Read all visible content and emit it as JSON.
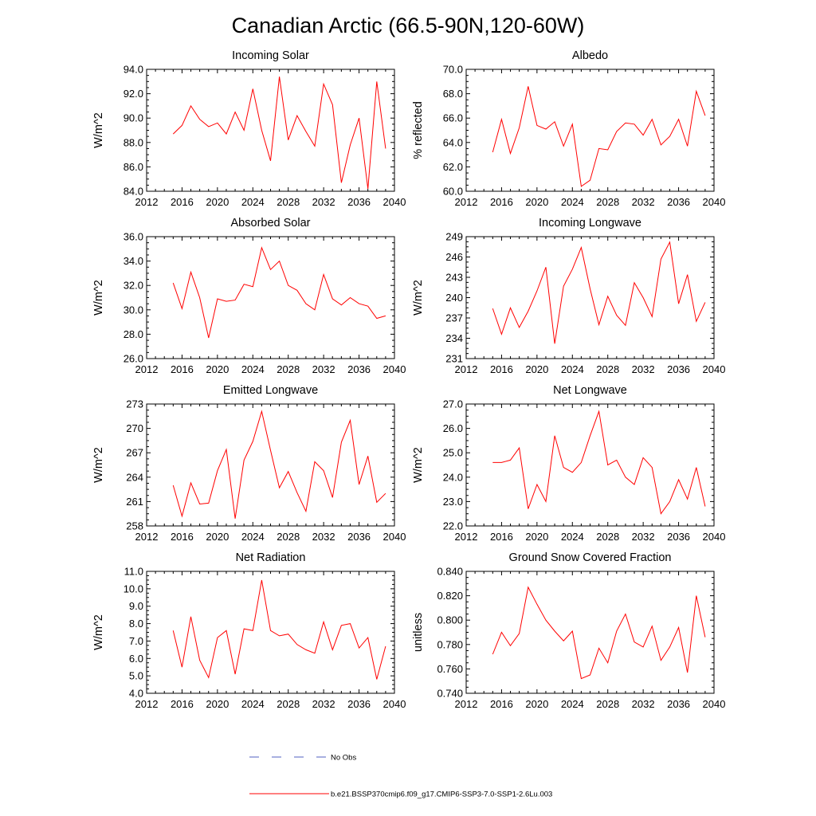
{
  "figure_title": "Canadian Arctic (66.5-90N,120-60W)",
  "legend": {
    "entries": [
      {
        "label": "No Obs",
        "color": "#5060c0",
        "style": "dashed"
      },
      {
        "label": "b.e21.BSSP370cmip6.f09_g17.CMIP6-SSP3-7.0-SSP1-2.6Lu.003",
        "color": "#ff0000",
        "style": "solid"
      }
    ]
  },
  "chart_data": [
    {
      "type": "line",
      "title": "Incoming Solar",
      "xlabel": "",
      "ylabel": "W/m^2",
      "xlim": [
        2012,
        2040
      ],
      "ylim": [
        84,
        94
      ],
      "xticks": [
        2012,
        2016,
        2020,
        2024,
        2028,
        2032,
        2036,
        2040
      ],
      "xtick_labels": [
        "2012",
        "2016",
        "2020",
        "2024",
        "2028",
        "2032",
        "2036",
        "2040"
      ],
      "yticks": [
        84,
        86,
        88,
        90,
        92,
        94
      ],
      "ytick_labels": [
        "84.0",
        "86.0",
        "88.0",
        "90.0",
        "92.0",
        "94.0"
      ],
      "x": [
        2015,
        2016,
        2017,
        2018,
        2019,
        2020,
        2021,
        2022,
        2023,
        2024,
        2025,
        2026,
        2027,
        2028,
        2029,
        2030,
        2031,
        2032,
        2033,
        2034,
        2035,
        2036,
        2037,
        2038,
        2039
      ],
      "series": [
        {
          "name": "b.e21.BSSP370cmip6.f09_g17.CMIP6-SSP3-7.0-SSP1-2.6Lu.003",
          "color": "#ff0000",
          "values": [
            88.7,
            89.4,
            91.0,
            89.9,
            89.3,
            89.6,
            88.7,
            90.5,
            89.0,
            92.4,
            89.0,
            86.5,
            93.4,
            88.2,
            90.2,
            88.9,
            87.7,
            92.8,
            91.1,
            84.7,
            87.8,
            90.0,
            84.2,
            93.0,
            87.5
          ]
        }
      ]
    },
    {
      "type": "line",
      "title": "Albedo",
      "xlabel": "",
      "ylabel": "% reflected",
      "xlim": [
        2012,
        2040
      ],
      "ylim": [
        60,
        70
      ],
      "xticks": [
        2012,
        2016,
        2020,
        2024,
        2028,
        2032,
        2036,
        2040
      ],
      "xtick_labels": [
        "2012",
        "2016",
        "2020",
        "2024",
        "2028",
        "2032",
        "2036",
        "2040"
      ],
      "yticks": [
        60,
        62,
        64,
        66,
        68,
        70
      ],
      "ytick_labels": [
        "60.0",
        "62.0",
        "64.0",
        "66.0",
        "68.0",
        "70.0"
      ],
      "x": [
        2015,
        2016,
        2017,
        2018,
        2019,
        2020,
        2021,
        2022,
        2023,
        2024,
        2025,
        2026,
        2027,
        2028,
        2029,
        2030,
        2031,
        2032,
        2033,
        2034,
        2035,
        2036,
        2037,
        2038,
        2039
      ],
      "series": [
        {
          "name": "b.e21.BSSP370cmip6.f09_g17.CMIP6-SSP3-7.0-SSP1-2.6Lu.003",
          "color": "#ff0000",
          "values": [
            63.2,
            65.9,
            63.1,
            65.2,
            68.6,
            65.4,
            65.1,
            65.7,
            63.7,
            65.5,
            60.4,
            60.9,
            63.5,
            63.4,
            64.9,
            65.6,
            65.5,
            64.6,
            65.9,
            63.8,
            64.5,
            65.9,
            63.7,
            68.2,
            66.2
          ]
        }
      ]
    },
    {
      "type": "line",
      "title": "Absorbed Solar",
      "xlabel": "",
      "ylabel": "W/m^2",
      "xlim": [
        2012,
        2040
      ],
      "ylim": [
        26,
        36
      ],
      "xticks": [
        2012,
        2016,
        2020,
        2024,
        2028,
        2032,
        2036,
        2040
      ],
      "xtick_labels": [
        "2012",
        "2016",
        "2020",
        "2024",
        "2028",
        "2032",
        "2036",
        "2040"
      ],
      "yticks": [
        26,
        28,
        30,
        32,
        34,
        36
      ],
      "ytick_labels": [
        "26.0",
        "28.0",
        "30.0",
        "32.0",
        "34.0",
        "36.0"
      ],
      "x": [
        2015,
        2016,
        2017,
        2018,
        2019,
        2020,
        2021,
        2022,
        2023,
        2024,
        2025,
        2026,
        2027,
        2028,
        2029,
        2030,
        2031,
        2032,
        2033,
        2034,
        2035,
        2036,
        2037,
        2038,
        2039
      ],
      "series": [
        {
          "name": "b.e21.BSSP370cmip6.f09_g17.CMIP6-SSP3-7.0-SSP1-2.6Lu.003",
          "color": "#ff0000",
          "values": [
            32.2,
            30.1,
            33.1,
            31.0,
            27.7,
            30.9,
            30.7,
            30.8,
            32.1,
            31.9,
            35.1,
            33.3,
            34.0,
            32.0,
            31.6,
            30.5,
            30.0,
            32.9,
            30.9,
            30.4,
            31.0,
            30.5,
            30.3,
            29.3,
            29.5
          ]
        }
      ]
    },
    {
      "type": "line",
      "title": "Incoming Longwave",
      "xlabel": "",
      "ylabel": "W/m^2",
      "xlim": [
        2012,
        2040
      ],
      "ylim": [
        231,
        249
      ],
      "xticks": [
        2012,
        2016,
        2020,
        2024,
        2028,
        2032,
        2036,
        2040
      ],
      "xtick_labels": [
        "2012",
        "2016",
        "2020",
        "2024",
        "2028",
        "2032",
        "2036",
        "2040"
      ],
      "yticks": [
        231,
        234,
        237,
        240,
        243,
        246,
        249
      ],
      "ytick_labels": [
        "231",
        "234",
        "237",
        "240",
        "243",
        "246",
        "249"
      ],
      "x": [
        2015,
        2016,
        2017,
        2018,
        2019,
        2020,
        2021,
        2022,
        2023,
        2024,
        2025,
        2026,
        2027,
        2028,
        2029,
        2030,
        2031,
        2032,
        2033,
        2034,
        2035,
        2036,
        2037,
        2038,
        2039
      ],
      "series": [
        {
          "name": "b.e21.BSSP370cmip6.f09_g17.CMIP6-SSP3-7.0-SSP1-2.6Lu.003",
          "color": "#ff0000",
          "values": [
            238.4,
            234.6,
            238.5,
            235.6,
            238.0,
            241.0,
            244.5,
            233.2,
            241.7,
            244.2,
            247.4,
            241.3,
            236.0,
            240.2,
            237.4,
            235.9,
            242.2,
            240.0,
            237.2,
            245.7,
            248.2,
            239.1,
            243.4,
            236.5,
            239.3
          ]
        }
      ]
    },
    {
      "type": "line",
      "title": "Emitted Longwave",
      "xlabel": "",
      "ylabel": "W/m^2",
      "xlim": [
        2012,
        2040
      ],
      "ylim": [
        258,
        273
      ],
      "xticks": [
        2012,
        2016,
        2020,
        2024,
        2028,
        2032,
        2036,
        2040
      ],
      "xtick_labels": [
        "2012",
        "2016",
        "2020",
        "2024",
        "2028",
        "2032",
        "2036",
        "2040"
      ],
      "yticks": [
        258,
        261,
        264,
        267,
        270,
        273
      ],
      "ytick_labels": [
        "258",
        "261",
        "264",
        "267",
        "270",
        "273"
      ],
      "x": [
        2015,
        2016,
        2017,
        2018,
        2019,
        2020,
        2021,
        2022,
        2023,
        2024,
        2025,
        2026,
        2027,
        2028,
        2029,
        2030,
        2031,
        2032,
        2033,
        2034,
        2035,
        2036,
        2037,
        2038,
        2039
      ],
      "series": [
        {
          "name": "b.e21.BSSP370cmip6.f09_g17.CMIP6-SSP3-7.0-SSP1-2.6Lu.003",
          "color": "#ff0000",
          "values": [
            263.0,
            259.2,
            263.3,
            260.7,
            260.8,
            264.8,
            267.4,
            258.9,
            266.1,
            268.4,
            272.1,
            267.3,
            262.7,
            264.7,
            262.1,
            259.8,
            265.9,
            264.8,
            261.5,
            268.3,
            271.0,
            263.1,
            266.6,
            260.9,
            262.0
          ]
        }
      ]
    },
    {
      "type": "line",
      "title": "Net Longwave",
      "xlabel": "",
      "ylabel": "W/m^2",
      "xlim": [
        2012,
        2040
      ],
      "ylim": [
        22,
        27
      ],
      "xticks": [
        2012,
        2016,
        2020,
        2024,
        2028,
        2032,
        2036,
        2040
      ],
      "xtick_labels": [
        "2012",
        "2016",
        "2020",
        "2024",
        "2028",
        "2032",
        "2036",
        "2040"
      ],
      "yticks": [
        22,
        23,
        24,
        25,
        26,
        27
      ],
      "ytick_labels": [
        "22.0",
        "23.0",
        "24.0",
        "25.0",
        "26.0",
        "27.0"
      ],
      "x": [
        2015,
        2016,
        2017,
        2018,
        2019,
        2020,
        2021,
        2022,
        2023,
        2024,
        2025,
        2026,
        2027,
        2028,
        2029,
        2030,
        2031,
        2032,
        2033,
        2034,
        2035,
        2036,
        2037,
        2038,
        2039
      ],
      "series": [
        {
          "name": "b.e21.BSSP370cmip6.f09_g17.CMIP6-SSP3-7.0-SSP1-2.6Lu.003",
          "color": "#ff0000",
          "values": [
            24.6,
            24.6,
            24.7,
            25.2,
            22.7,
            23.7,
            23.0,
            25.7,
            24.4,
            24.2,
            24.6,
            25.7,
            26.7,
            24.5,
            24.7,
            24.0,
            23.7,
            24.8,
            24.4,
            22.5,
            23.0,
            23.9,
            23.1,
            24.4,
            22.8
          ]
        }
      ]
    },
    {
      "type": "line",
      "title": "Net Radiation",
      "xlabel": "",
      "ylabel": "W/m^2",
      "xlim": [
        2012,
        2040
      ],
      "ylim": [
        4,
        11
      ],
      "xticks": [
        2012,
        2016,
        2020,
        2024,
        2028,
        2032,
        2036,
        2040
      ],
      "xtick_labels": [
        "2012",
        "2016",
        "2020",
        "2024",
        "2028",
        "2032",
        "2036",
        "2040"
      ],
      "yticks": [
        4,
        5,
        6,
        7,
        8,
        9,
        10,
        11
      ],
      "ytick_labels": [
        "4.0",
        "5.0",
        "6.0",
        "7.0",
        "8.0",
        "9.0",
        "10.0",
        "11.0"
      ],
      "x": [
        2015,
        2016,
        2017,
        2018,
        2019,
        2020,
        2021,
        2022,
        2023,
        2024,
        2025,
        2026,
        2027,
        2028,
        2029,
        2030,
        2031,
        2032,
        2033,
        2034,
        2035,
        2036,
        2037,
        2038,
        2039
      ],
      "series": [
        {
          "name": "b.e21.BSSP370cmip6.f09_g17.CMIP6-SSP3-7.0-SSP1-2.6Lu.003",
          "color": "#ff0000",
          "values": [
            7.6,
            5.5,
            8.4,
            5.9,
            4.9,
            7.2,
            7.6,
            5.1,
            7.7,
            7.6,
            10.5,
            7.6,
            7.3,
            7.4,
            6.8,
            6.5,
            6.3,
            8.1,
            6.5,
            7.9,
            8.0,
            6.6,
            7.2,
            4.8,
            6.7
          ]
        }
      ]
    },
    {
      "type": "line",
      "title": "Ground Snow Covered Fraction",
      "xlabel": "",
      "ylabel": "unitless",
      "xlim": [
        2012,
        2040
      ],
      "ylim": [
        0.74,
        0.84
      ],
      "xticks": [
        2012,
        2016,
        2020,
        2024,
        2028,
        2032,
        2036,
        2040
      ],
      "xtick_labels": [
        "2012",
        "2016",
        "2020",
        "2024",
        "2028",
        "2032",
        "2036",
        "2040"
      ],
      "yticks": [
        0.74,
        0.76,
        0.78,
        0.8,
        0.82,
        0.84
      ],
      "ytick_labels": [
        "0.740",
        "0.760",
        "0.780",
        "0.800",
        "0.820",
        "0.840"
      ],
      "x": [
        2015,
        2016,
        2017,
        2018,
        2019,
        2020,
        2021,
        2022,
        2023,
        2024,
        2025,
        2026,
        2027,
        2028,
        2029,
        2030,
        2031,
        2032,
        2033,
        2034,
        2035,
        2036,
        2037,
        2038,
        2039
      ],
      "series": [
        {
          "name": "b.e21.BSSP370cmip6.f09_g17.CMIP6-SSP3-7.0-SSP1-2.6Lu.003",
          "color": "#ff0000",
          "values": [
            0.772,
            0.79,
            0.779,
            0.789,
            0.827,
            0.813,
            0.8,
            0.791,
            0.783,
            0.791,
            0.752,
            0.755,
            0.777,
            0.765,
            0.791,
            0.805,
            0.782,
            0.778,
            0.795,
            0.767,
            0.778,
            0.794,
            0.757,
            0.82,
            0.786
          ]
        }
      ]
    }
  ]
}
